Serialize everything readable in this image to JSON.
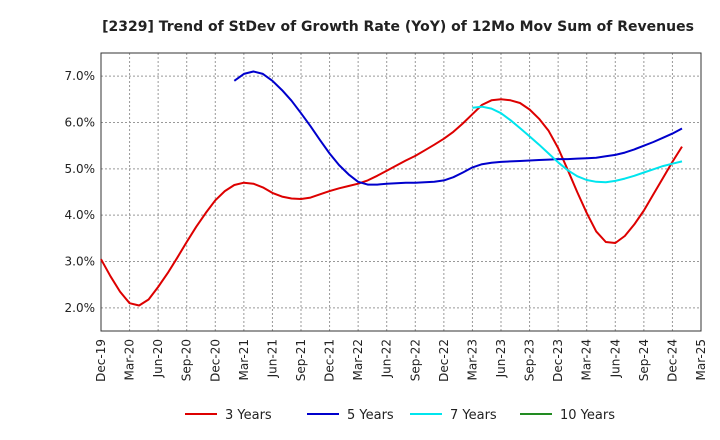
{
  "chart_data": {
    "type": "line",
    "title": "[2329]  Trend of StDev of Growth Rate (YoY) of 12Mo Mov Sum of Revenues",
    "xlabel": "",
    "ylabel": "",
    "x_ticks": [
      "Dec-19",
      "Mar-20",
      "Jun-20",
      "Sep-20",
      "Dec-20",
      "Mar-21",
      "Jun-21",
      "Sep-21",
      "Dec-21",
      "Mar-22",
      "Jun-22",
      "Sep-22",
      "Dec-22",
      "Mar-23",
      "Jun-23",
      "Sep-23",
      "Dec-23",
      "Mar-24",
      "Jun-24",
      "Sep-24",
      "Dec-24",
      "Mar-25"
    ],
    "y_ticks": [
      "2.0%",
      "3.0%",
      "4.0%",
      "5.0%",
      "6.0%",
      "7.0%"
    ],
    "y_tick_values": [
      2.0,
      3.0,
      4.0,
      5.0,
      6.0,
      7.0
    ],
    "ylim": [
      1.5,
      7.5
    ],
    "x_range_months": [
      0,
      63
    ],
    "series": [
      {
        "name": "3 Years",
        "color": "#dd0000",
        "points": [
          [
            0,
            3.05
          ],
          [
            1,
            2.68
          ],
          [
            2,
            2.35
          ],
          [
            3,
            2.1
          ],
          [
            4,
            2.05
          ],
          [
            5,
            2.18
          ],
          [
            6,
            2.45
          ],
          [
            7,
            2.75
          ],
          [
            8,
            3.08
          ],
          [
            9,
            3.42
          ],
          [
            10,
            3.75
          ],
          [
            11,
            4.05
          ],
          [
            12,
            4.32
          ],
          [
            13,
            4.52
          ],
          [
            14,
            4.65
          ],
          [
            15,
            4.7
          ],
          [
            16,
            4.68
          ],
          [
            17,
            4.6
          ],
          [
            18,
            4.48
          ],
          [
            19,
            4.4
          ],
          [
            20,
            4.36
          ],
          [
            21,
            4.35
          ],
          [
            22,
            4.38
          ],
          [
            23,
            4.45
          ],
          [
            24,
            4.52
          ],
          [
            25,
            4.58
          ],
          [
            26,
            4.63
          ],
          [
            27,
            4.68
          ],
          [
            28,
            4.75
          ],
          [
            29,
            4.85
          ],
          [
            30,
            4.96
          ],
          [
            31,
            5.07
          ],
          [
            32,
            5.18
          ],
          [
            33,
            5.28
          ],
          [
            34,
            5.4
          ],
          [
            35,
            5.52
          ],
          [
            36,
            5.65
          ],
          [
            37,
            5.8
          ],
          [
            38,
            5.98
          ],
          [
            39,
            6.18
          ],
          [
            40,
            6.38
          ],
          [
            41,
            6.48
          ],
          [
            42,
            6.5
          ],
          [
            43,
            6.48
          ],
          [
            44,
            6.42
          ],
          [
            45,
            6.28
          ],
          [
            46,
            6.08
          ],
          [
            47,
            5.82
          ],
          [
            48,
            5.45
          ],
          [
            49,
            4.98
          ],
          [
            50,
            4.5
          ],
          [
            51,
            4.05
          ],
          [
            52,
            3.65
          ],
          [
            53,
            3.42
          ],
          [
            54,
            3.4
          ],
          [
            55,
            3.55
          ],
          [
            56,
            3.8
          ],
          [
            57,
            4.1
          ],
          [
            58,
            4.45
          ],
          [
            59,
            4.8
          ],
          [
            60,
            5.15
          ],
          [
            61,
            5.48
          ]
        ]
      },
      {
        "name": "5 Years",
        "color": "#0000cc",
        "points": [
          [
            14,
            6.9
          ],
          [
            15,
            7.05
          ],
          [
            16,
            7.1
          ],
          [
            17,
            7.05
          ],
          [
            18,
            6.9
          ],
          [
            19,
            6.7
          ],
          [
            20,
            6.47
          ],
          [
            21,
            6.2
          ],
          [
            22,
            5.92
          ],
          [
            23,
            5.62
          ],
          [
            24,
            5.33
          ],
          [
            25,
            5.08
          ],
          [
            26,
            4.88
          ],
          [
            27,
            4.72
          ],
          [
            28,
            4.66
          ],
          [
            29,
            4.66
          ],
          [
            30,
            4.68
          ],
          [
            31,
            4.69
          ],
          [
            32,
            4.7
          ],
          [
            33,
            4.7
          ],
          [
            34,
            4.71
          ],
          [
            35,
            4.72
          ],
          [
            36,
            4.75
          ],
          [
            37,
            4.82
          ],
          [
            38,
            4.92
          ],
          [
            39,
            5.03
          ],
          [
            40,
            5.1
          ],
          [
            41,
            5.13
          ],
          [
            42,
            5.15
          ],
          [
            43,
            5.16
          ],
          [
            44,
            5.17
          ],
          [
            45,
            5.18
          ],
          [
            46,
            5.19
          ],
          [
            47,
            5.2
          ],
          [
            48,
            5.21
          ],
          [
            49,
            5.21
          ],
          [
            50,
            5.22
          ],
          [
            51,
            5.23
          ],
          [
            52,
            5.24
          ],
          [
            53,
            5.27
          ],
          [
            54,
            5.3
          ],
          [
            55,
            5.35
          ],
          [
            56,
            5.42
          ],
          [
            57,
            5.5
          ],
          [
            58,
            5.58
          ],
          [
            59,
            5.67
          ],
          [
            60,
            5.76
          ],
          [
            61,
            5.87
          ]
        ]
      },
      {
        "name": "7 Years",
        "color": "#00e5ee",
        "points": [
          [
            39,
            6.32
          ],
          [
            40,
            6.34
          ],
          [
            41,
            6.3
          ],
          [
            42,
            6.2
          ],
          [
            43,
            6.05
          ],
          [
            44,
            5.88
          ],
          [
            45,
            5.7
          ],
          [
            46,
            5.52
          ],
          [
            47,
            5.33
          ],
          [
            48,
            5.14
          ],
          [
            49,
            4.97
          ],
          [
            50,
            4.84
          ],
          [
            51,
            4.76
          ],
          [
            52,
            4.72
          ],
          [
            53,
            4.71
          ],
          [
            54,
            4.74
          ],
          [
            55,
            4.79
          ],
          [
            56,
            4.85
          ],
          [
            57,
            4.92
          ],
          [
            58,
            4.99
          ],
          [
            59,
            5.06
          ],
          [
            60,
            5.11
          ],
          [
            61,
            5.16
          ]
        ]
      },
      {
        "name": "10 Years",
        "color": "#228b22",
        "points": []
      }
    ],
    "legend_position": "bottom",
    "grid": true
  }
}
